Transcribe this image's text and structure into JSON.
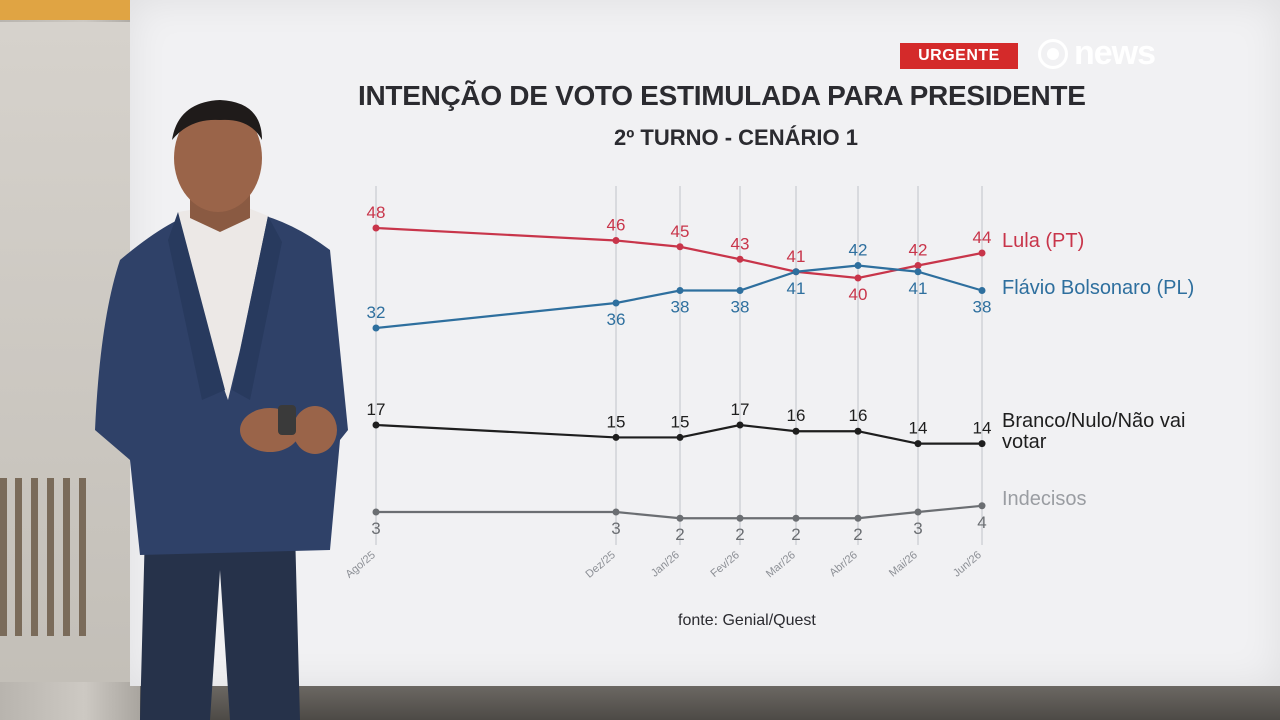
{
  "broadcast": {
    "urgent_label": "URGENTE",
    "logo_text": "news",
    "source": "fonte: Genial/Quest"
  },
  "chart_data": {
    "type": "line",
    "title": "INTENÇÃO DE VOTO ESTIMULADA PARA PRESIDENTE",
    "subtitle": "2º TURNO - CENÁRIO 1",
    "categories": [
      "Ago/25",
      "Dez/25",
      "Jan/26",
      "Fev/26",
      "Mar/26",
      "Abr/26",
      "Mai/26",
      "Jun/26"
    ],
    "ylim": [
      0,
      50
    ],
    "grid": "vertical",
    "legend": "right",
    "series": [
      {
        "name": "Lula (PT)",
        "color": "#c8354a",
        "values": [
          48,
          46,
          45,
          43,
          41,
          40,
          42,
          44
        ],
        "label_pos": [
          "above",
          "above",
          "above",
          "above",
          "above",
          "below",
          "above",
          "above"
        ]
      },
      {
        "name": "Flávio Bolsonaro (PL)",
        "color": "#2e6f9e",
        "values": [
          32,
          36,
          38,
          38,
          41,
          42,
          41,
          38
        ],
        "label_pos": [
          "above",
          "below",
          "below",
          "below",
          "below",
          "above",
          "below",
          "below"
        ]
      },
      {
        "name": "Branco/Nulo/Não vai votar",
        "color": "#1e1e1e",
        "values": [
          17,
          15,
          15,
          17,
          16,
          16,
          14,
          14
        ],
        "label_pos": [
          "above",
          "above",
          "above",
          "above",
          "above",
          "above",
          "above",
          "above"
        ]
      },
      {
        "name": "Indecisos",
        "color": "#6b6e72",
        "values": [
          3,
          3,
          2,
          2,
          2,
          2,
          3,
          4
        ],
        "label_pos": [
          "below",
          "below",
          "below",
          "below",
          "below",
          "below",
          "below",
          "below"
        ]
      }
    ]
  }
}
